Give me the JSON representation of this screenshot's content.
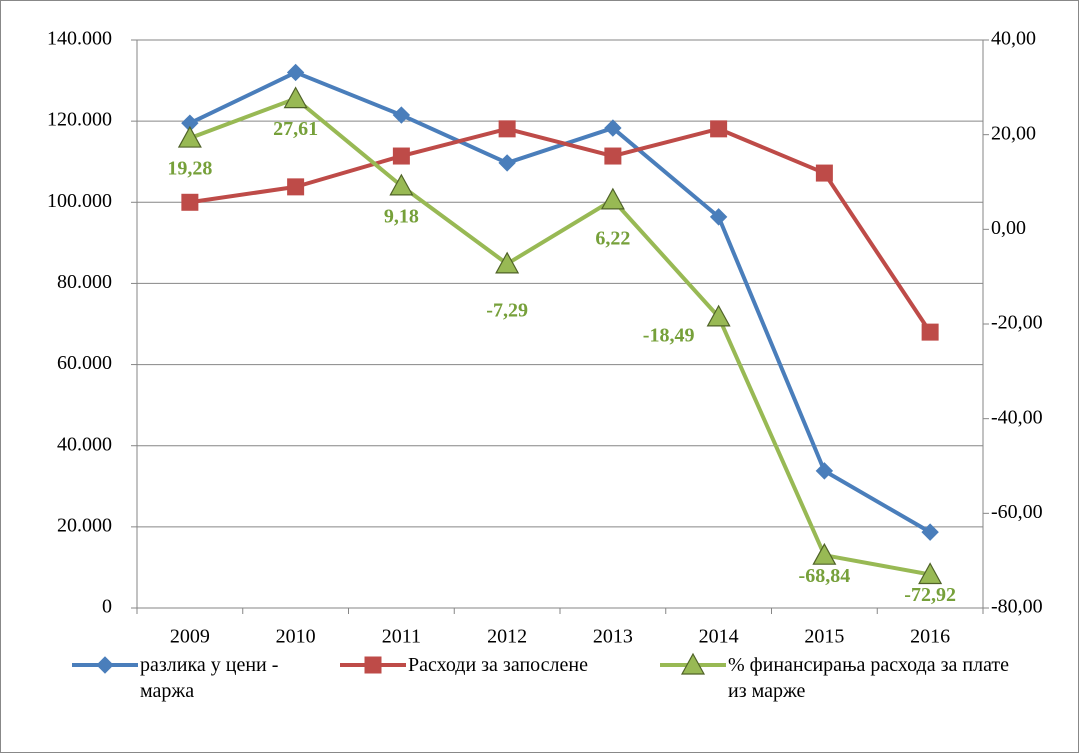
{
  "chart_data": {
    "type": "line",
    "categories": [
      "2009",
      "2010",
      "2011",
      "2012",
      "2013",
      "2014",
      "2015",
      "2016"
    ],
    "series": [
      {
        "name": "разлика у цени - маржа",
        "color": "#4a7ebb",
        "marker": "diamond",
        "values": [
          119500,
          132000,
          121500,
          109700,
          118300,
          96400,
          33800,
          18700
        ]
      },
      {
        "name": "Расходи за запослене",
        "color": "#be4b48",
        "marker": "square",
        "values": [
          100000,
          103800,
          111400,
          118100,
          111400,
          118100,
          107200,
          68000
        ]
      },
      {
        "name": "% финансирања расхода за плате из марже",
        "color": "#98b954",
        "marker": "triangle",
        "axis": "y2",
        "values": [
          19.28,
          27.61,
          9.18,
          -7.29,
          6.22,
          -18.49,
          -68.84,
          -72.92
        ],
        "value_labels": [
          "19,28",
          "27,61",
          "9,18",
          "-7,29",
          "6,22",
          "-18,49",
          "-68,84",
          "-72,92"
        ]
      }
    ],
    "ylim": [
      0,
      140000
    ],
    "yticks": [
      0,
      {
        "value": 20000,
        "label": "20.000"
      },
      {
        "value": 40000,
        "label": "40.000"
      },
      {
        "value": 60000,
        "label": "60.000"
      },
      {
        "value": 80000,
        "label": "80.000"
      },
      {
        "value": 100000,
        "label": "100.000"
      },
      {
        "value": 120000,
        "label": "120.000"
      },
      {
        "value": 140000,
        "label": "140.000"
      }
    ],
    "y2lim": [
      -80,
      40
    ],
    "y2ticks": [
      {
        "value": -80,
        "label": "-80,00"
      },
      {
        "value": -60,
        "label": "-60,00"
      },
      {
        "value": -40,
        "label": "-40,00"
      },
      {
        "value": -20,
        "label": "-20,00"
      },
      {
        "value": 0,
        "label": "0,00"
      },
      {
        "value": 20,
        "label": "20,00"
      },
      {
        "value": 40,
        "label": "40,00"
      }
    ],
    "grid": true,
    "legend": "bottom"
  }
}
